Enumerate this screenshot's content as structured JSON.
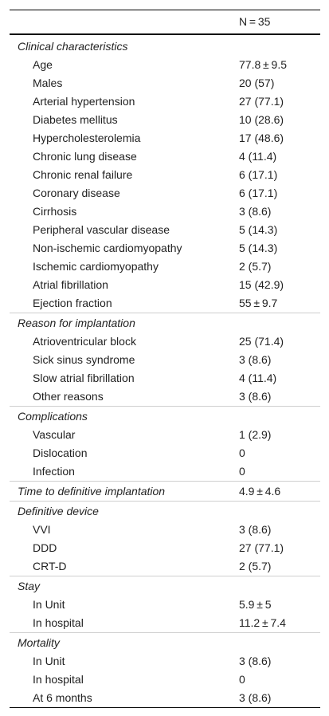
{
  "header": {
    "col_label": "",
    "col_value": "N = 35"
  },
  "sections": [
    {
      "title": "Clinical characteristics",
      "rows": [
        {
          "label": "Age",
          "value": "77.8 ± 9.5"
        },
        {
          "label": "Males",
          "value": "20 (57)"
        },
        {
          "label": "Arterial hypertension",
          "value": "27 (77.1)"
        },
        {
          "label": "Diabetes mellitus",
          "value": "10 (28.6)"
        },
        {
          "label": "Hypercholesterolemia",
          "value": "17 (48.6)"
        },
        {
          "label": "Chronic lung disease",
          "value": "4 (11.4)"
        },
        {
          "label": "Chronic renal failure",
          "value": "6 (17.1)"
        },
        {
          "label": "Coronary disease",
          "value": "6 (17.1)"
        },
        {
          "label": "Cirrhosis",
          "value": "3 (8.6)"
        },
        {
          "label": "Peripheral vascular disease",
          "value": "5 (14.3)"
        },
        {
          "label": "Non-ischemic cardiomyopathy",
          "value": "5 (14.3)"
        },
        {
          "label": "Ischemic cardiomyopathy",
          "value": "2 (5.7)"
        },
        {
          "label": "Atrial fibrillation",
          "value": "15 (42.9)"
        },
        {
          "label": "Ejection fraction",
          "value": "55 ± 9.7"
        }
      ]
    },
    {
      "title": "Reason for implantation",
      "rows": [
        {
          "label": "Atrioventricular block",
          "value": "25 (71.4)"
        },
        {
          "label": "Sick sinus syndrome",
          "value": "3 (8.6)"
        },
        {
          "label": "Slow atrial fibrillation",
          "value": "4 (11.4)"
        },
        {
          "label": "Other reasons",
          "value": "3 (8.6)"
        }
      ]
    },
    {
      "title": "Complications",
      "rows": [
        {
          "label": "Vascular",
          "value": "1 (2.9)"
        },
        {
          "label": "Dislocation",
          "value": "0"
        },
        {
          "label": "Infection",
          "value": "0"
        }
      ]
    },
    {
      "title": "Time to definitive implantation",
      "value": "4.9 ± 4.6",
      "rows": []
    },
    {
      "title": "Definitive device",
      "rows": [
        {
          "label": "VVI",
          "value": "3 (8.6)"
        },
        {
          "label": "DDD",
          "value": "27 (77.1)"
        },
        {
          "label": "CRT-D",
          "value": "2 (5.7)"
        }
      ]
    },
    {
      "title": "Stay",
      "rows": [
        {
          "label": "In Unit",
          "value": "5.9 ± 5"
        },
        {
          "label": "In hospital",
          "value": "11.2 ± 7.4"
        }
      ]
    },
    {
      "title": "Mortality",
      "rows": [
        {
          "label": "In Unit",
          "value": "3 (8.6)"
        },
        {
          "label": "In hospital",
          "value": "0"
        },
        {
          "label": "At 6 months",
          "value": "3 (8.6)"
        }
      ]
    }
  ]
}
